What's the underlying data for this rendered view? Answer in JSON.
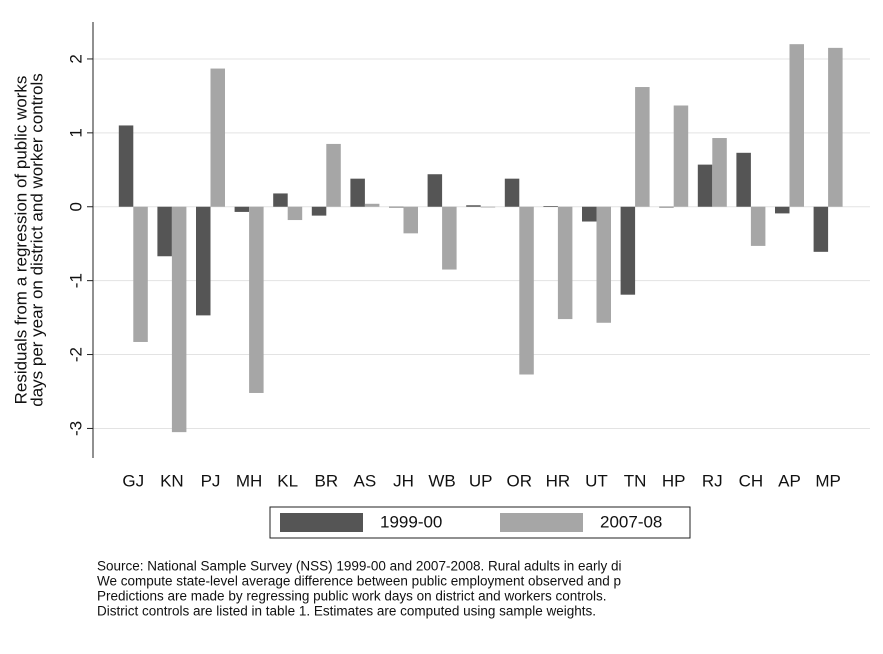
{
  "chart_data": {
    "type": "bar",
    "y_label_lines": [
      "Residuals from a regression of public works",
      "days per year on district and worker controls"
    ],
    "categories": [
      "GJ",
      "KN",
      "PJ",
      "MH",
      "KL",
      "BR",
      "AS",
      "JH",
      "WB",
      "UP",
      "OR",
      "HR",
      "UT",
      "TN",
      "HP",
      "RJ",
      "CH",
      "AP",
      "MP"
    ],
    "series": [
      {
        "name": "1999-00",
        "color": "#555555",
        "values": [
          1.1,
          -0.67,
          -1.47,
          -0.07,
          0.18,
          -0.12,
          0.38,
          -0.01,
          0.44,
          0.02,
          0.38,
          0.01,
          -0.2,
          -1.19,
          -0.01,
          0.57,
          0.73,
          -0.09,
          -0.61
        ]
      },
      {
        "name": "2007-08",
        "color": "#a6a6a6",
        "values": [
          -1.83,
          -3.05,
          1.87,
          -2.52,
          -0.18,
          0.85,
          0.04,
          -0.36,
          -0.85,
          -0.01,
          -2.27,
          -1.52,
          -1.57,
          1.62,
          1.37,
          0.93,
          -0.53,
          2.2,
          2.15
        ]
      }
    ],
    "ylim": [
      -3.4,
      2.5
    ],
    "yticks": [
      -3,
      -2,
      -1,
      0,
      1,
      2
    ],
    "grid": true,
    "legend": "bottom",
    "notes": [
      "Source: National Sample Survey (NSS) 1999-00 and 2007-2008. Rural adults in early di",
      "We compute state-level average difference between public employment observed and p",
      "Predictions are made by regressing public work days on district and workers controls.",
      "District controls are listed in table 1. Estimates are computed using sample weights."
    ]
  }
}
